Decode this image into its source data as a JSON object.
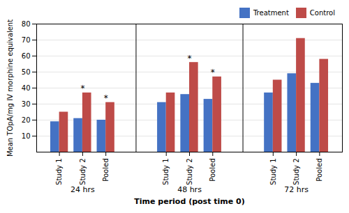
{
  "chart_data": {
    "type": "bar",
    "ylabel": "Mean TOpA/mg IV morphine equivalent",
    "xlabel": "Time period (post time 0)",
    "ylim": [
      0,
      80
    ],
    "yticks": [
      10,
      20,
      30,
      40,
      50,
      60,
      70,
      80
    ],
    "groups": [
      "24 hrs",
      "48 hrs",
      "72 hrs"
    ],
    "categories": [
      "Study 1",
      "Study 2",
      "Pooled"
    ],
    "series": [
      {
        "name": "Treatment",
        "color": "#4472C4",
        "values": [
          [
            19,
            21,
            20
          ],
          [
            31,
            36,
            33
          ],
          [
            37,
            49,
            43
          ]
        ]
      },
      {
        "name": "Control",
        "color": "#BE4B48",
        "values": [
          [
            25,
            37,
            31
          ],
          [
            37,
            56,
            47
          ],
          [
            45,
            71,
            58
          ]
        ]
      }
    ],
    "annotations": [
      {
        "group": "24 hrs",
        "category": "Study 2",
        "text": "*"
      },
      {
        "group": "24 hrs",
        "category": "Pooled",
        "text": "*"
      },
      {
        "group": "48 hrs",
        "category": "Study 2",
        "text": "*"
      },
      {
        "group": "48 hrs",
        "category": "Pooled",
        "text": "*"
      }
    ],
    "grid": true,
    "legend": "upper right"
  }
}
